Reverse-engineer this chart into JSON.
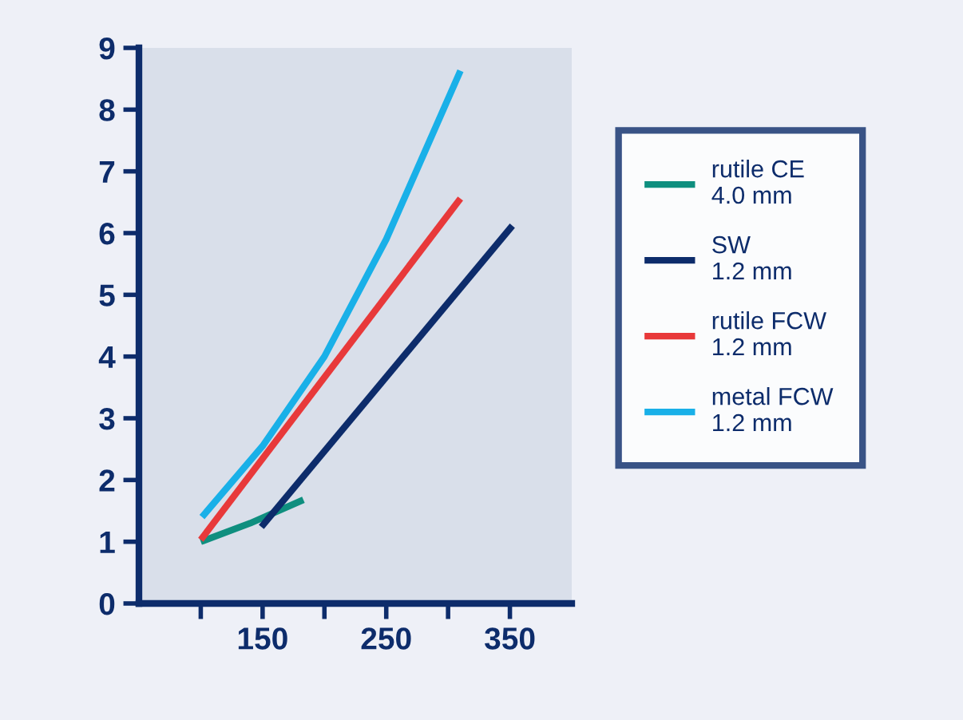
{
  "chart_data": {
    "type": "line",
    "xlim": [
      50,
      400
    ],
    "ylim": [
      0,
      9
    ],
    "xticks": [
      {
        "value": 100,
        "label": null
      },
      150,
      {
        "value": 200,
        "label": null
      },
      250,
      {
        "value": 300,
        "label": null
      },
      350
    ],
    "yticks": [
      0,
      1,
      2,
      3,
      4,
      5,
      6,
      7,
      8,
      9
    ],
    "grid": false,
    "legend": "right",
    "marker": "none",
    "line_style": "solid",
    "series": [
      {
        "name": "rutile CE\n4.0 mm",
        "color": "#0f8f7f",
        "x": [
          100,
          140,
          183
        ],
        "values": [
          1.0,
          1.3,
          1.68
        ]
      },
      {
        "name": "SW\n1.2 mm",
        "color": "#0d2c6b",
        "x": [
          149,
          352
        ],
        "values": [
          1.24,
          6.12
        ]
      },
      {
        "name": "rutile FCW\n1.2 mm",
        "color": "#e8393a",
        "x": [
          100,
          310
        ],
        "values": [
          1.03,
          6.56
        ]
      },
      {
        "name": "metal FCW\n1.2 mm",
        "color": "#19b0e8",
        "x": [
          101,
          150,
          200,
          250,
          310
        ],
        "values": [
          1.4,
          2.55,
          4.0,
          5.9,
          8.63
        ]
      }
    ]
  }
}
